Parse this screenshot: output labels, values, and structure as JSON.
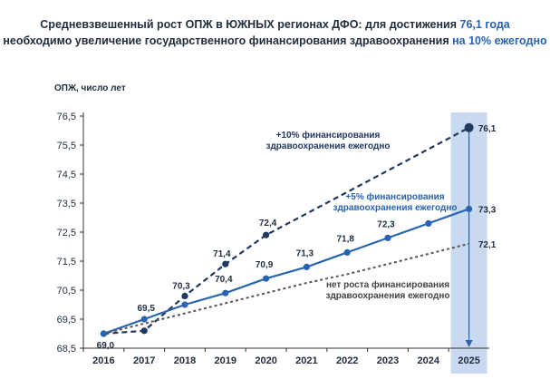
{
  "title": {
    "line1_a": "Средневзвешенный рост ОПЖ в ЮЖНЫХ регионах ДФО: для достижения ",
    "line1_accent": "76,1 года",
    "line2_a": "необходимо увеличение государственного финансирования здравоохранения ",
    "line2_accent": "на 10% ежегодно"
  },
  "colors": {
    "navy": "#22385f",
    "blue": "#2a64b0",
    "dotted": "#555555",
    "highlight": "#c9daf0"
  },
  "chart_data": {
    "type": "line",
    "ylabel": "ОПЖ, число лет",
    "ylim": [
      68.5,
      76.5
    ],
    "yticks": [
      "68,5",
      "69,5",
      "70,5",
      "71,5",
      "72,5",
      "73,5",
      "74,5",
      "75,5",
      "76,5"
    ],
    "yticks_values": [
      68.5,
      69.5,
      70.5,
      71.5,
      72.5,
      73.5,
      74.5,
      75.5,
      76.5
    ],
    "x": [
      "2016",
      "2017",
      "2018",
      "2019",
      "2020",
      "2021",
      "2022",
      "2023",
      "2024",
      "2025"
    ],
    "series": [
      {
        "name": "+10% финансирования здравоохранения ежегодно",
        "name_lines": [
          "+10% финансирования",
          "здравоохранения ежегодно"
        ],
        "style": "dashed",
        "values": [
          69.0,
          69.1,
          70.3,
          71.4,
          72.4,
          73.3,
          74.2,
          75.0,
          75.6,
          76.1
        ],
        "markers": [
          0,
          1,
          2,
          3,
          4,
          9
        ],
        "labels": {
          "2": "70,3",
          "3": "71,4",
          "4": "72,4",
          "9": "76,1"
        }
      },
      {
        "name": "+5% финансирования здравоохранения ежегодно",
        "name_lines": [
          "+5% финансирования",
          "здравоохранения ежегодно"
        ],
        "style": "solid",
        "values": [
          69.0,
          69.5,
          70.0,
          70.4,
          70.9,
          71.3,
          71.8,
          72.3,
          72.8,
          73.3
        ],
        "markers": [
          0,
          1,
          2,
          3,
          4,
          5,
          6,
          7,
          8,
          9
        ],
        "labels": {
          "1": "69,5",
          "3": "70,4",
          "4": "70,9",
          "5": "71,3",
          "6": "71,8",
          "7": "72,3",
          "9": "73,3"
        }
      },
      {
        "name": "нет роста финансирования здравоохранения ежегодно",
        "name_lines": [
          "нет роста финансирования",
          "здравоохранения ежегодно"
        ],
        "style": "dotted",
        "values": [
          69.0,
          69.35,
          69.7,
          70.05,
          70.4,
          70.75,
          71.05,
          71.4,
          71.75,
          72.1
        ],
        "markers": [],
        "labels": {
          "9": "72,1"
        }
      }
    ],
    "start_label": "69,0",
    "highlight_year": "2025"
  }
}
